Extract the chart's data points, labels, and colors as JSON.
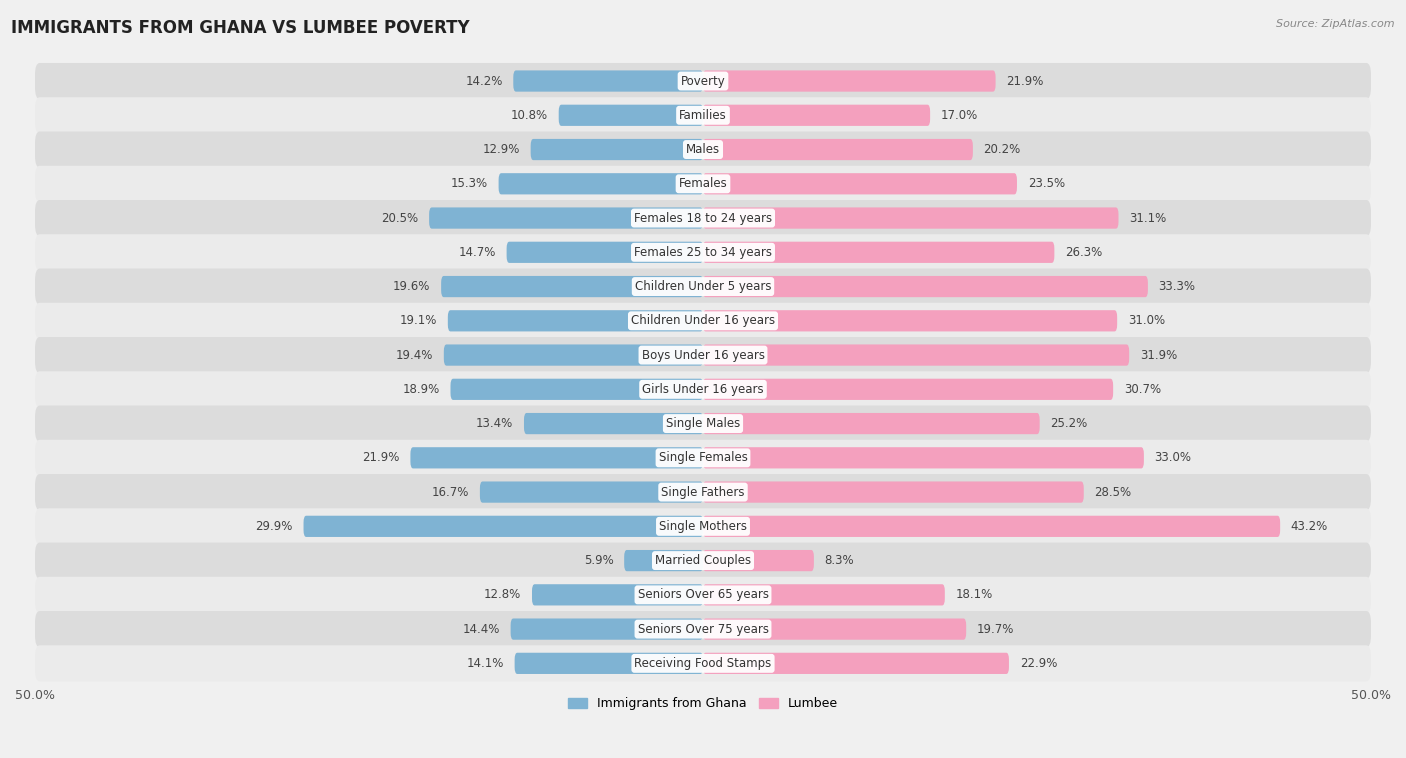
{
  "title": "IMMIGRANTS FROM GHANA VS LUMBEE POVERTY",
  "source": "Source: ZipAtlas.com",
  "categories": [
    "Poverty",
    "Families",
    "Males",
    "Females",
    "Females 18 to 24 years",
    "Females 25 to 34 years",
    "Children Under 5 years",
    "Children Under 16 years",
    "Boys Under 16 years",
    "Girls Under 16 years",
    "Single Males",
    "Single Females",
    "Single Fathers",
    "Single Mothers",
    "Married Couples",
    "Seniors Over 65 years",
    "Seniors Over 75 years",
    "Receiving Food Stamps"
  ],
  "ghana_values": [
    14.2,
    10.8,
    12.9,
    15.3,
    20.5,
    14.7,
    19.6,
    19.1,
    19.4,
    18.9,
    13.4,
    21.9,
    16.7,
    29.9,
    5.9,
    12.8,
    14.4,
    14.1
  ],
  "lumbee_values": [
    21.9,
    17.0,
    20.2,
    23.5,
    31.1,
    26.3,
    33.3,
    31.0,
    31.9,
    30.7,
    25.2,
    33.0,
    28.5,
    43.2,
    8.3,
    18.1,
    19.7,
    22.9
  ],
  "ghana_color": "#7fb3d3",
  "lumbee_color": "#f4a0be",
  "row_bg_colors": [
    "#e8e8e8",
    "#f2f2f2"
  ],
  "background_color": "#f0f0f0",
  "axis_limit": 50.0,
  "legend_labels": [
    "Immigrants from Ghana",
    "Lumbee"
  ],
  "title_fontsize": 12,
  "label_fontsize": 8.5,
  "value_fontsize": 8.5
}
